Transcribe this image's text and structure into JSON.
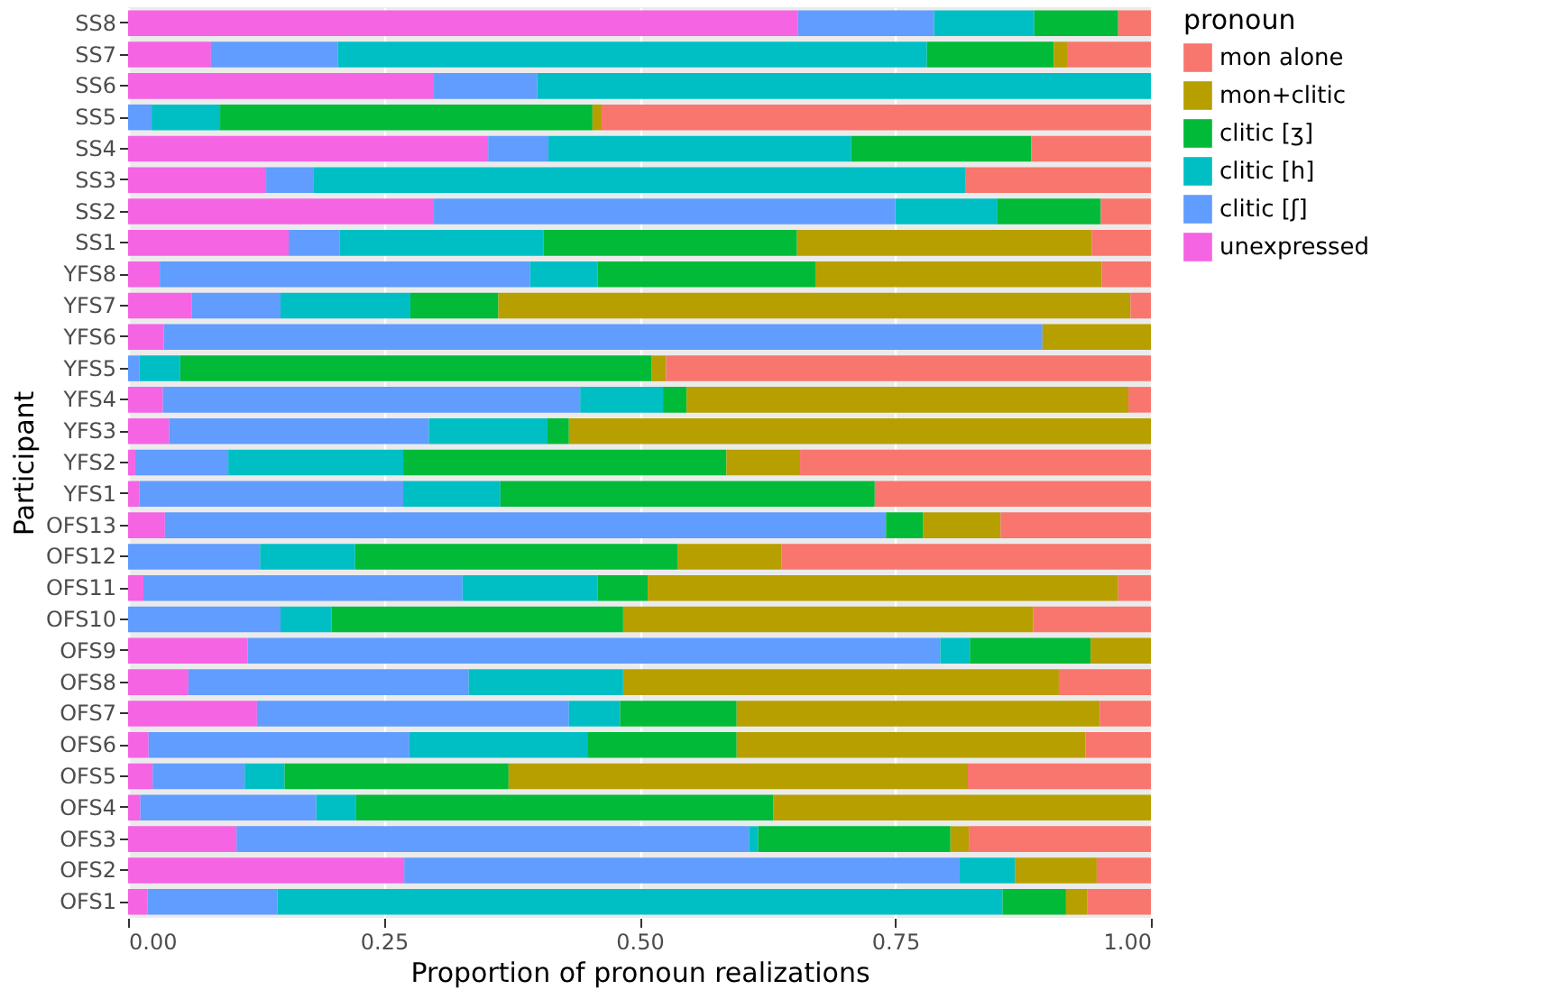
{
  "chart_data": {
    "type": "bar",
    "orientation": "horizontal",
    "stacked": true,
    "xlabel": "Proportion of pronoun realizations",
    "ylabel": "Participant",
    "legend_title": "pronoun",
    "legend": "right",
    "grid": true,
    "categories": [
      "SS8",
      "SS7",
      "SS6",
      "SS5",
      "SS4",
      "SS3",
      "SS2",
      "SS1",
      "YFS8",
      "YFS7",
      "YFS6",
      "YFS5",
      "YFS4",
      "YFS3",
      "YFS2",
      "YFS1",
      "OFS13",
      "OFS12",
      "OFS11",
      "OFS10",
      "OFS9",
      "OFS8",
      "OFS7",
      "OFS6",
      "OFS5",
      "OFS4",
      "OFS3",
      "OFS2",
      "OFS1"
    ],
    "xlim": [
      0,
      1
    ],
    "xticks": [
      {
        "value": 0,
        "label": "0.00"
      },
      {
        "value": 0.25,
        "label": "0.25"
      },
      {
        "value": 0.5,
        "label": "0.50"
      },
      {
        "value": 0.75,
        "label": "0.75"
      },
      {
        "value": 1,
        "label": "1.00"
      }
    ],
    "series": [
      {
        "name": "unexpressed",
        "color": "#f564e3",
        "values": [
          0.655,
          0.081,
          0.299,
          0,
          0.352,
          0.135,
          0.299,
          0.157,
          0.031,
          0.062,
          0.035,
          0,
          0.034,
          0.04,
          0.007,
          0.011,
          0.036,
          0,
          0.015,
          0,
          0.117,
          0.059,
          0.126,
          0.02,
          0.024,
          0.012,
          0.106,
          0.27,
          0.019
        ]
      },
      {
        "name": "clitic [ʃ]",
        "color": "#619cff",
        "values": [
          0.133,
          0.124,
          0.101,
          0.023,
          0.059,
          0.046,
          0.451,
          0.05,
          0.362,
          0.087,
          0.859,
          0.011,
          0.408,
          0.254,
          0.091,
          0.258,
          0.705,
          0.129,
          0.312,
          0.149,
          0.677,
          0.274,
          0.305,
          0.255,
          0.09,
          0.172,
          0.501,
          0.543,
          0.127
        ]
      },
      {
        "name": "clitic [h]",
        "color": "#00bfc4",
        "values": [
          0.098,
          0.576,
          0.6,
          0.067,
          0.296,
          0.638,
          0.1,
          0.199,
          0.066,
          0.127,
          0,
          0.04,
          0.081,
          0.116,
          0.171,
          0.095,
          0,
          0.093,
          0.132,
          0.05,
          0.029,
          0.151,
          0.05,
          0.174,
          0.039,
          0.039,
          0.009,
          0.054,
          0.709
        ]
      },
      {
        "name": "clitic [ʒ]",
        "color": "#00ba38",
        "values": [
          0.082,
          0.124,
          0,
          0.364,
          0.176,
          0,
          0.101,
          0.248,
          0.213,
          0.086,
          0,
          0.461,
          0.023,
          0.021,
          0.316,
          0.366,
          0.036,
          0.315,
          0.049,
          0.285,
          0.118,
          0,
          0.114,
          0.146,
          0.219,
          0.408,
          0.188,
          0,
          0.062
        ]
      },
      {
        "name": "mon+clitic",
        "color": "#b79f00",
        "values": [
          0,
          0.013,
          0,
          0.009,
          0,
          0,
          0,
          0.288,
          0.28,
          0.618,
          0.106,
          0.014,
          0.432,
          0.569,
          0.072,
          0,
          0.076,
          0.102,
          0.46,
          0.401,
          0.059,
          0.426,
          0.355,
          0.341,
          0.449,
          0.369,
          0.018,
          0.08,
          0.021
        ]
      },
      {
        "name": "mon alone",
        "color": "#f8766d",
        "values": [
          0.032,
          0.082,
          0,
          0.537,
          0.117,
          0.181,
          0.049,
          0.058,
          0.048,
          0.02,
          0,
          0.474,
          0.022,
          0,
          0.343,
          0.27,
          0.147,
          0.361,
          0.032,
          0.115,
          0,
          0.09,
          0.05,
          0.064,
          0.179,
          0,
          0.178,
          0.053,
          0.062
        ]
      }
    ]
  }
}
